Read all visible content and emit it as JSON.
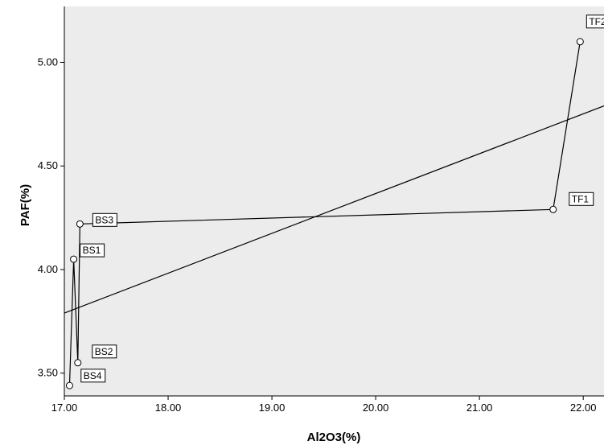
{
  "chart_data": {
    "type": "scatter",
    "title": "",
    "xlabel": "Al2O3(%)",
    "ylabel": "PAF(%)",
    "xlim": [
      17.0,
      22.2
    ],
    "ylim": [
      3.39,
      5.27
    ],
    "x_ticks": [
      "17.00",
      "18.00",
      "19.00",
      "20.00",
      "21.00",
      "22.00"
    ],
    "y_ticks": [
      "3.50",
      "4.00",
      "4.50",
      "5.00"
    ],
    "points": [
      {
        "label": "",
        "x": 17.05,
        "y": 3.44
      },
      {
        "label": "BS1",
        "x": 17.09,
        "y": 4.05
      },
      {
        "label": "BS4",
        "x": 17.13,
        "y": 3.55
      },
      {
        "label": "BS3",
        "x": 17.15,
        "y": 4.22
      },
      {
        "label": "TF1",
        "x": 21.71,
        "y": 4.29
      },
      {
        "label": "TF2",
        "x": 21.97,
        "y": 5.1
      }
    ],
    "extra_labels": [
      {
        "label": "BS2",
        "x": 17.13,
        "y": 3.55
      }
    ],
    "path_order": [
      0,
      1,
      2,
      3,
      4,
      5
    ],
    "fit_line": {
      "x": [
        17.0,
        22.2
      ],
      "y": [
        3.79,
        4.79
      ]
    },
    "grid": false,
    "background": "#ececec",
    "line_color": "#000000"
  }
}
